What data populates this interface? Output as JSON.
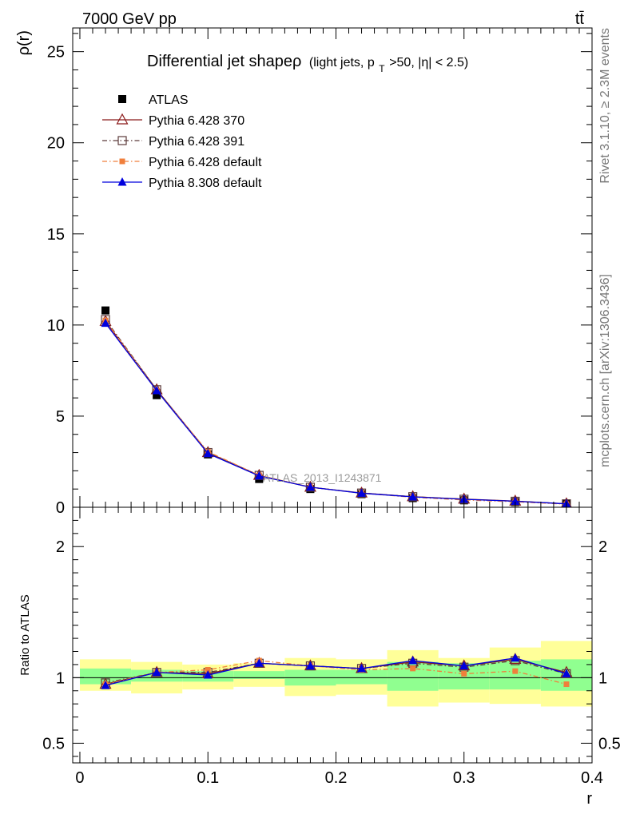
{
  "header": {
    "energy_label": "7000 GeV pp",
    "process_label": "tt̄"
  },
  "side_text": {
    "rivet": "Rivet 3.1.10, ≥ 2.3M events",
    "mcplots": "mcplots.cern.ch [arXiv:1306.3436]"
  },
  "analysis_watermark": "ATLAS_2013_I1243871",
  "chart_data": [
    {
      "type": "scatter",
      "panel": "main",
      "title_main": "Differential jet shapeρ",
      "title_sub_1": "(light jets, p",
      "title_sub_sub": "T",
      "title_sub_2": ">50, |η| < 2.5)",
      "ylabel": "ρ(r)",
      "xlabel": "",
      "xlim": [
        -0.0056,
        0.4
      ],
      "ylim": [
        0,
        26.3
      ],
      "yticks": [
        0,
        5,
        10,
        15,
        20,
        25
      ],
      "ytick_labels": [
        "0",
        "5",
        "10",
        "15",
        "20",
        "25"
      ],
      "x": [
        0.02,
        0.06,
        0.1,
        0.14,
        0.18,
        0.22,
        0.26,
        0.3,
        0.34,
        0.38
      ],
      "legend_position": "top-left",
      "series": [
        {
          "name": "ATLAS",
          "color": "#000000",
          "marker": "square-filled",
          "line": "none",
          "values": [
            10.8,
            6.15,
            2.9,
            1.55,
            1.0,
            0.72,
            0.5,
            0.38,
            0.28,
            0.18
          ]
        },
        {
          "name": "Pythia 6.428 370",
          "color": "#8b1a1a",
          "marker": "triangle-open",
          "line": "solid",
          "values": [
            10.2,
            6.45,
            3.0,
            1.75,
            1.1,
            0.78,
            0.58,
            0.45,
            0.34,
            0.19
          ]
        },
        {
          "name": "Pythia 6.428 391",
          "color": "#5c3a3a",
          "marker": "square-open",
          "line": "dashdot",
          "values": [
            10.3,
            6.45,
            3.0,
            1.75,
            1.1,
            0.78,
            0.58,
            0.44,
            0.33,
            0.19
          ]
        },
        {
          "name": "Pythia 6.428 default",
          "color": "#f07f3c",
          "marker": "square-filled-small",
          "line": "dashdot",
          "values": [
            10.25,
            6.4,
            3.05,
            1.75,
            1.1,
            0.77,
            0.55,
            0.4,
            0.3,
            0.17
          ]
        },
        {
          "name": "Pythia 8.308 default",
          "color": "#0000dd",
          "marker": "triangle-filled",
          "line": "solid",
          "values": [
            10.1,
            6.4,
            2.95,
            1.72,
            1.1,
            0.77,
            0.57,
            0.44,
            0.33,
            0.19
          ]
        }
      ]
    },
    {
      "type": "scatter",
      "panel": "ratio",
      "ylabel": "Ratio to ATLAS",
      "xlabel": "r",
      "xlim": [
        -0.0056,
        0.4
      ],
      "ylim": [
        0.35,
        2.3
      ],
      "yticks": [
        0.5,
        1,
        2
      ],
      "ytick_labels": [
        "0.5",
        "1",
        "2"
      ],
      "xticks": [
        0,
        0.1,
        0.2,
        0.3,
        0.4
      ],
      "xtick_labels": [
        "0",
        "0.1",
        "0.2",
        "0.3",
        "0.4"
      ],
      "bin_edges": [
        0,
        0.04,
        0.08,
        0.12,
        0.16,
        0.2,
        0.24,
        0.28,
        0.32,
        0.36,
        0.4
      ],
      "band_1sigma": {
        "color": "#90ff90",
        "lo": [
          0.95,
          0.97,
          0.97,
          0.99,
          0.94,
          0.95,
          0.9,
          0.91,
          0.91,
          0.9
        ],
        "hi": [
          1.07,
          1.06,
          1.05,
          1.05,
          1.06,
          1.06,
          1.12,
          1.11,
          1.13,
          1.14
        ]
      },
      "band_2sigma": {
        "color": "#ffff99",
        "lo": [
          0.9,
          0.88,
          0.91,
          0.93,
          0.86,
          0.87,
          0.78,
          0.81,
          0.8,
          0.78
        ],
        "hi": [
          1.14,
          1.12,
          1.1,
          1.11,
          1.15,
          1.14,
          1.21,
          1.15,
          1.23,
          1.28
        ]
      },
      "x": [
        0.02,
        0.06,
        0.1,
        0.14,
        0.18,
        0.22,
        0.26,
        0.3,
        0.34,
        0.38
      ],
      "series": [
        {
          "name": "Pythia 6.428 370",
          "color": "#8b1a1a",
          "marker": "triangle-open",
          "line": "solid",
          "values": [
            0.95,
            1.04,
            1.03,
            1.11,
            1.09,
            1.07,
            1.12,
            1.09,
            1.14,
            1.04
          ]
        },
        {
          "name": "Pythia 6.428 391",
          "color": "#5c3a3a",
          "marker": "square-open",
          "line": "dashdot",
          "values": [
            0.96,
            1.04,
            1.04,
            1.11,
            1.09,
            1.07,
            1.11,
            1.08,
            1.13,
            1.03
          ]
        },
        {
          "name": "Pythia 6.428 default",
          "color": "#f07f3c",
          "marker": "square-filled-small",
          "line": "dashdot",
          "values": [
            0.95,
            1.04,
            1.06,
            1.13,
            1.09,
            1.06,
            1.07,
            1.03,
            1.05,
            0.95
          ]
        },
        {
          "name": "Pythia 8.308 default",
          "color": "#0000dd",
          "marker": "triangle-filled",
          "line": "solid",
          "values": [
            0.94,
            1.04,
            1.02,
            1.11,
            1.09,
            1.07,
            1.13,
            1.09,
            1.15,
            1.03
          ]
        }
      ]
    }
  ]
}
